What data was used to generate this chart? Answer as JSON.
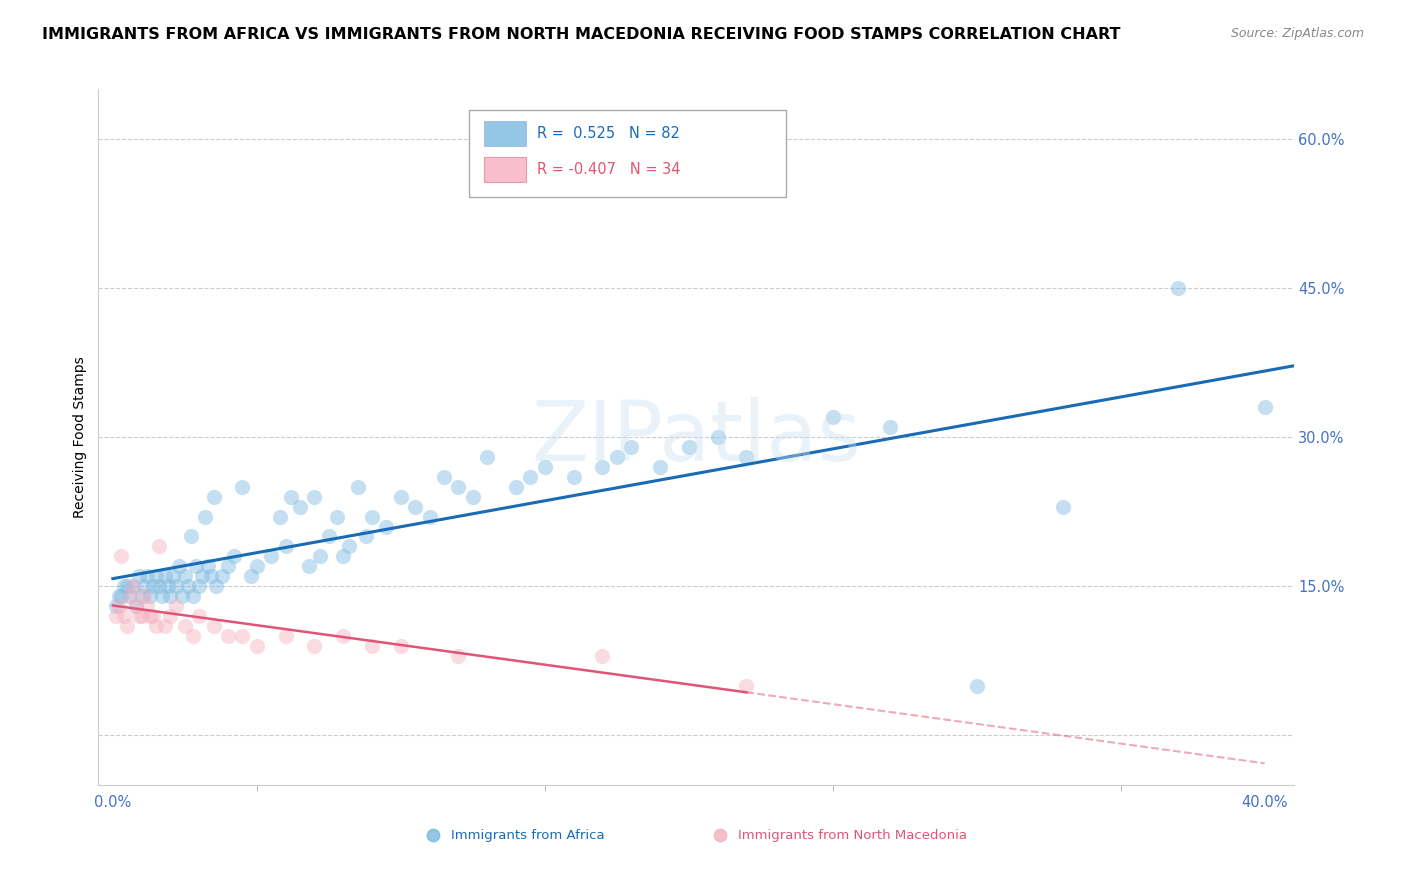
{
  "title": "IMMIGRANTS FROM AFRICA VS IMMIGRANTS FROM NORTH MACEDONIA RECEIVING FOOD STAMPS CORRELATION CHART",
  "source": "Source: ZipAtlas.com",
  "ylabel": "Receiving Food Stamps",
  "yticks": [
    0.0,
    0.15,
    0.3,
    0.45,
    0.6
  ],
  "ytick_labels": [
    "",
    "15.0%",
    "30.0%",
    "45.0%",
    "60.0%"
  ],
  "xtick_labels_bottom": [
    "0.0%",
    "40.0%"
  ],
  "xlim": [
    -0.005,
    0.41
  ],
  "ylim": [
    -0.05,
    0.65
  ],
  "africa_R": 0.525,
  "africa_N": 82,
  "macedonia_R": -0.407,
  "macedonia_N": 34,
  "africa_color": "#7ab8e0",
  "macedonia_color": "#f5b0c0",
  "africa_line_color": "#1a6bb5",
  "macedonia_line_color": "#e05575",
  "watermark": "ZIPatlas",
  "legend_label_africa": "Immigrants from Africa",
  "legend_label_macedonia": "Immigrants from North Macedonia",
  "africa_points_x": [
    0.001,
    0.002,
    0.003,
    0.004,
    0.005,
    0.006,
    0.007,
    0.008,
    0.009,
    0.01,
    0.011,
    0.012,
    0.013,
    0.014,
    0.015,
    0.016,
    0.017,
    0.018,
    0.019,
    0.02,
    0.021,
    0.022,
    0.023,
    0.024,
    0.025,
    0.026,
    0.027,
    0.028,
    0.029,
    0.03,
    0.031,
    0.032,
    0.033,
    0.034,
    0.035,
    0.036,
    0.038,
    0.04,
    0.042,
    0.045,
    0.048,
    0.05,
    0.055,
    0.058,
    0.06,
    0.062,
    0.065,
    0.068,
    0.07,
    0.072,
    0.075,
    0.078,
    0.08,
    0.082,
    0.085,
    0.088,
    0.09,
    0.095,
    0.1,
    0.105,
    0.11,
    0.115,
    0.12,
    0.125,
    0.13,
    0.14,
    0.145,
    0.15,
    0.16,
    0.17,
    0.175,
    0.18,
    0.19,
    0.2,
    0.21,
    0.22,
    0.25,
    0.27,
    0.3,
    0.33,
    0.37,
    0.4
  ],
  "africa_points_y": [
    0.13,
    0.14,
    0.14,
    0.15,
    0.15,
    0.14,
    0.15,
    0.13,
    0.16,
    0.14,
    0.15,
    0.16,
    0.14,
    0.15,
    0.16,
    0.15,
    0.14,
    0.16,
    0.15,
    0.14,
    0.16,
    0.15,
    0.17,
    0.14,
    0.16,
    0.15,
    0.2,
    0.14,
    0.17,
    0.15,
    0.16,
    0.22,
    0.17,
    0.16,
    0.24,
    0.15,
    0.16,
    0.17,
    0.18,
    0.25,
    0.16,
    0.17,
    0.18,
    0.22,
    0.19,
    0.24,
    0.23,
    0.17,
    0.24,
    0.18,
    0.2,
    0.22,
    0.18,
    0.19,
    0.25,
    0.2,
    0.22,
    0.21,
    0.24,
    0.23,
    0.22,
    0.26,
    0.25,
    0.24,
    0.28,
    0.25,
    0.26,
    0.27,
    0.26,
    0.27,
    0.28,
    0.29,
    0.27,
    0.29,
    0.3,
    0.28,
    0.32,
    0.31,
    0.05,
    0.23,
    0.45,
    0.33
  ],
  "macedonia_points_x": [
    0.001,
    0.002,
    0.003,
    0.004,
    0.005,
    0.006,
    0.007,
    0.008,
    0.009,
    0.01,
    0.011,
    0.012,
    0.013,
    0.014,
    0.015,
    0.016,
    0.018,
    0.02,
    0.022,
    0.025,
    0.028,
    0.03,
    0.035,
    0.04,
    0.045,
    0.05,
    0.06,
    0.07,
    0.08,
    0.09,
    0.1,
    0.12,
    0.17,
    0.22
  ],
  "macedonia_points_y": [
    0.12,
    0.13,
    0.18,
    0.12,
    0.11,
    0.14,
    0.15,
    0.13,
    0.12,
    0.12,
    0.14,
    0.13,
    0.12,
    0.12,
    0.11,
    0.19,
    0.11,
    0.12,
    0.13,
    0.11,
    0.1,
    0.12,
    0.11,
    0.1,
    0.1,
    0.09,
    0.1,
    0.09,
    0.1,
    0.09,
    0.09,
    0.08,
    0.08,
    0.05
  ],
  "background_color": "#ffffff",
  "grid_color": "#cccccc",
  "title_fontsize": 11.5,
  "axis_label_fontsize": 10,
  "tick_fontsize": 10.5,
  "tick_color": "#4472c4",
  "scatter_alpha": 0.45,
  "scatter_size": 120
}
